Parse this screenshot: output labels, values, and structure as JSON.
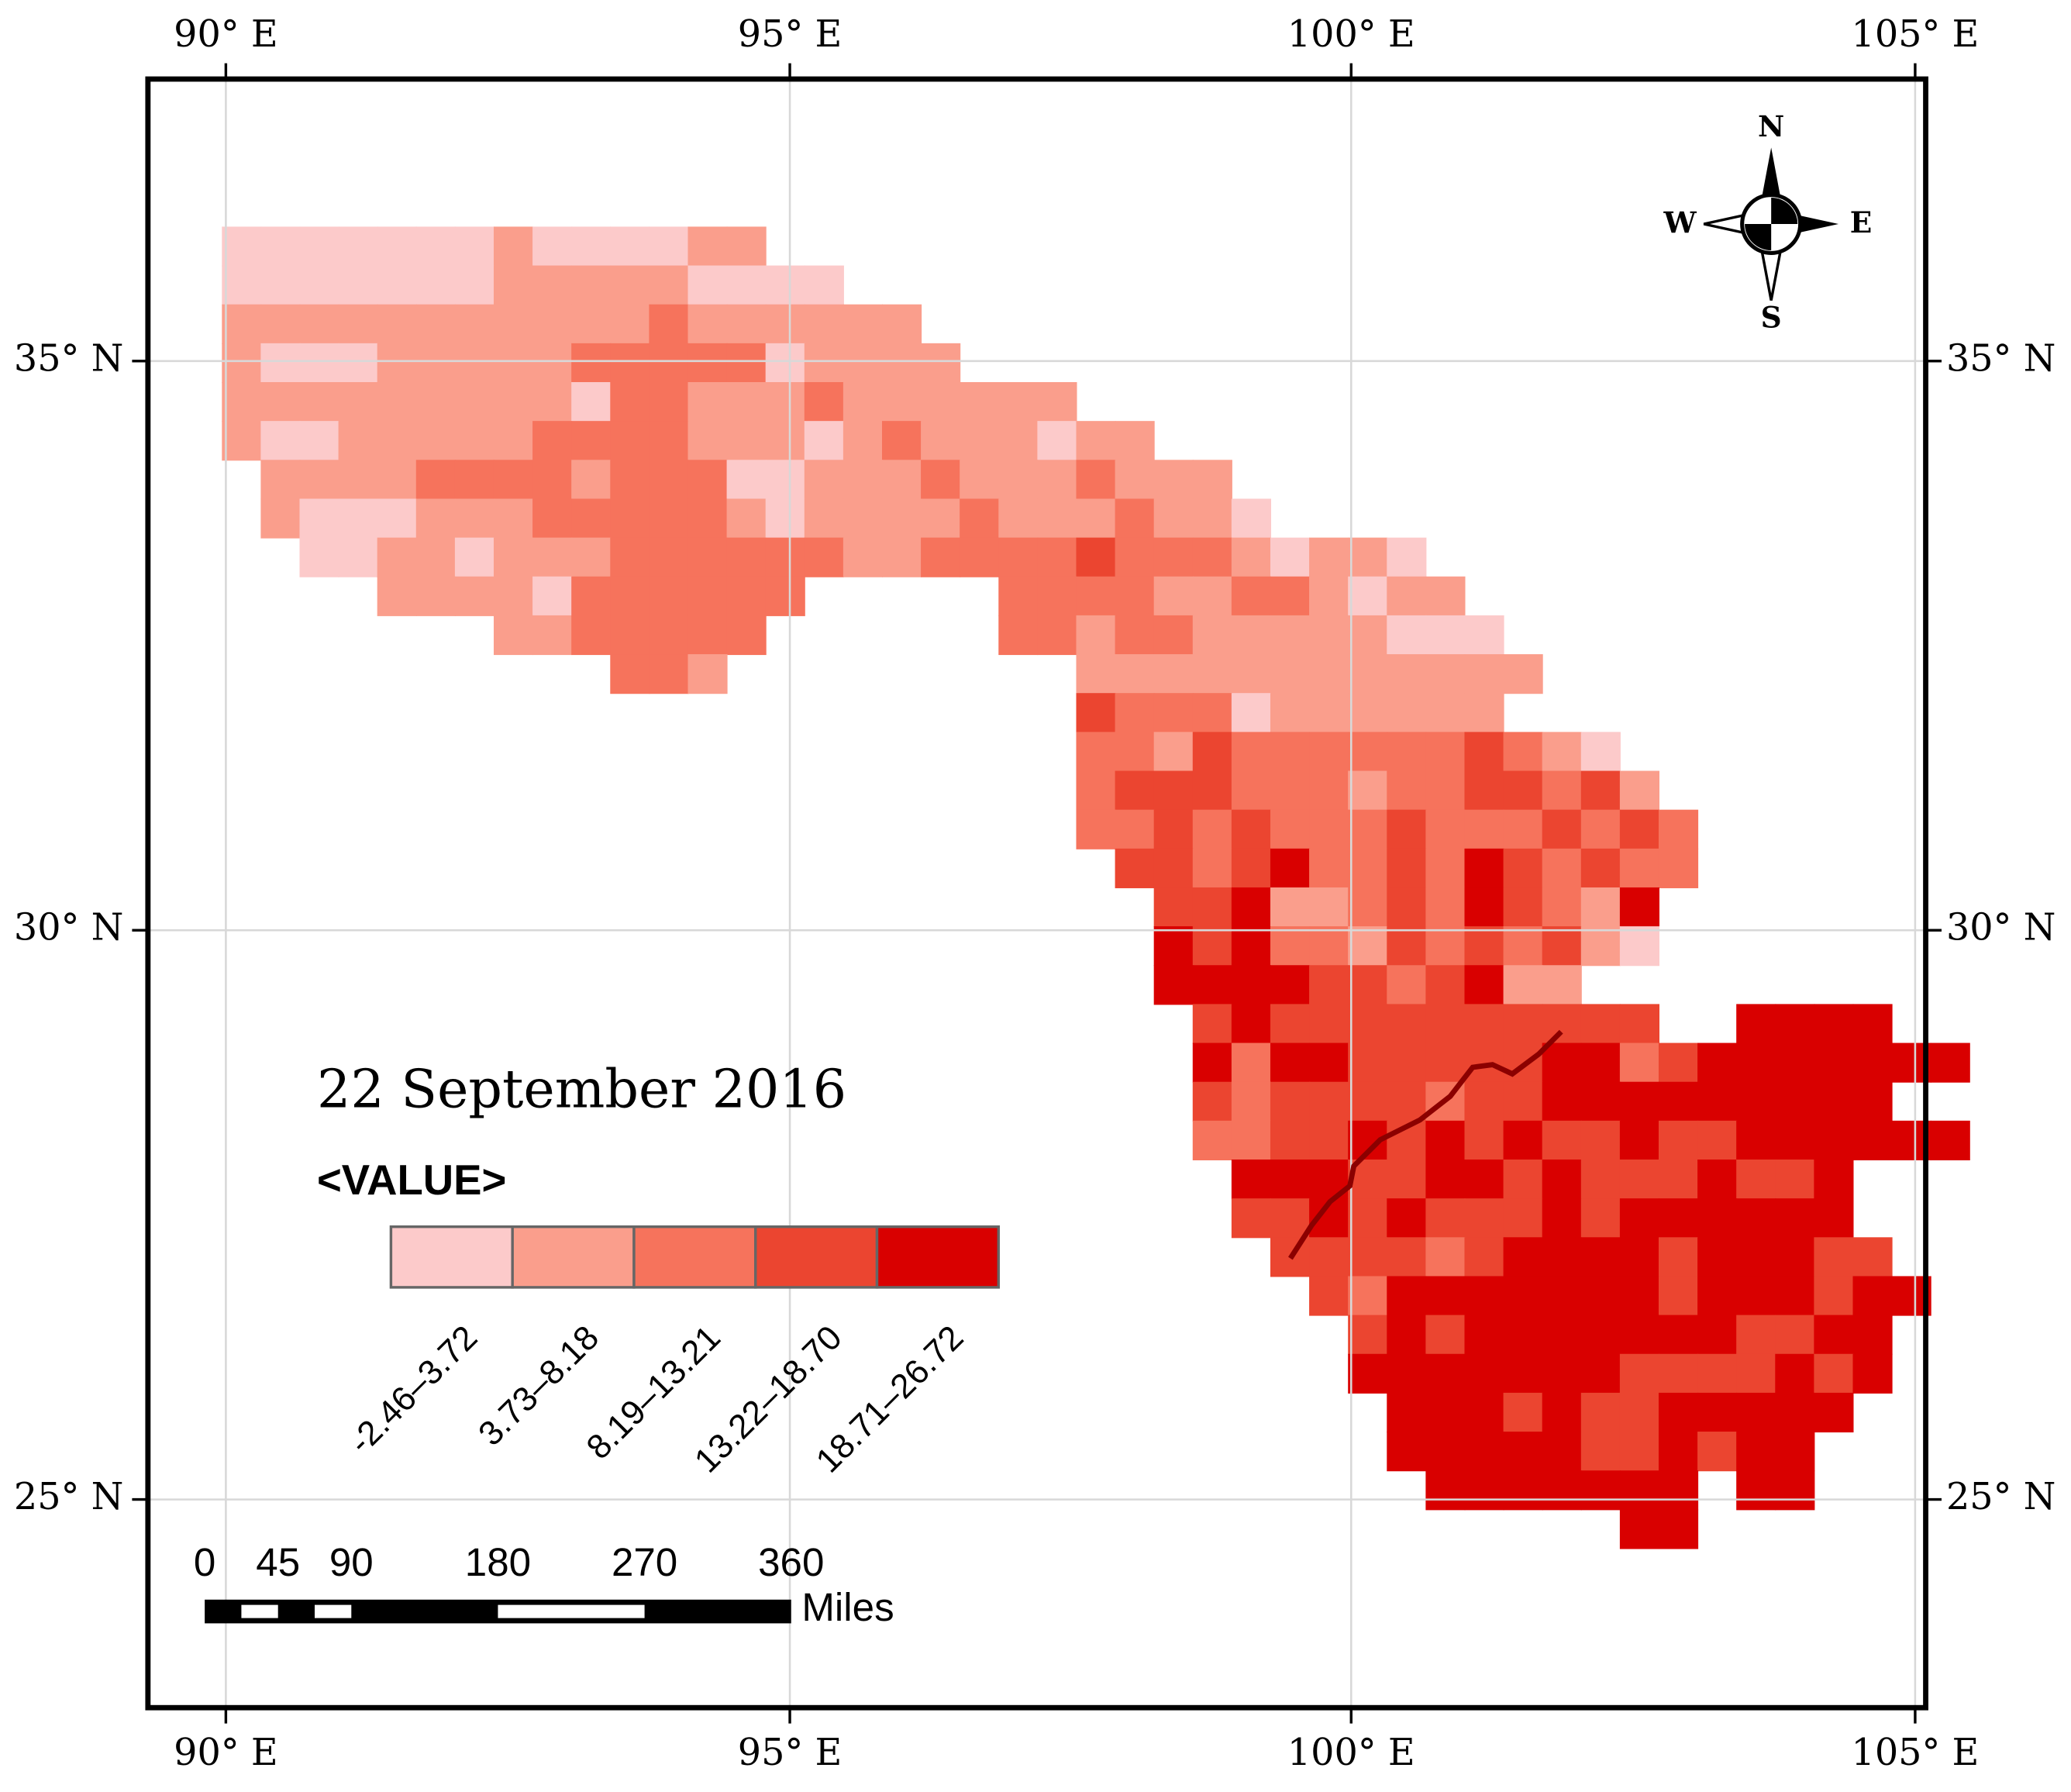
{
  "map": {
    "title": "22 September 2016",
    "legend": {
      "title": "<VALUE>",
      "classes": [
        {
          "label": "-2.46–3.72",
          "color": "#fccaca"
        },
        {
          "label": "3.73–8.18",
          "color": "#fa9e8c"
        },
        {
          "label": "8.19–13.21",
          "color": "#f6735c"
        },
        {
          "label": "13.22–18.70",
          "color": "#eb4530"
        },
        {
          "label": "18.71–26.72",
          "color": "#d90000"
        }
      ]
    }
  },
  "axes": {
    "top": [
      "90° E",
      "95° E",
      "100° E",
      "105° E"
    ],
    "bottom": [
      "90° E",
      "95° E",
      "100° E",
      "105° E"
    ],
    "left": [
      "35° N",
      "30° N",
      "25° N"
    ],
    "right": [
      "35° N",
      "30° N",
      "25° N"
    ]
  },
  "compass": {
    "n": "N",
    "s": "S",
    "e": "E",
    "w": "W"
  },
  "scale_bar": {
    "ticks": [
      0,
      45,
      90,
      180,
      270,
      360
    ],
    "unit": "Miles"
  }
}
